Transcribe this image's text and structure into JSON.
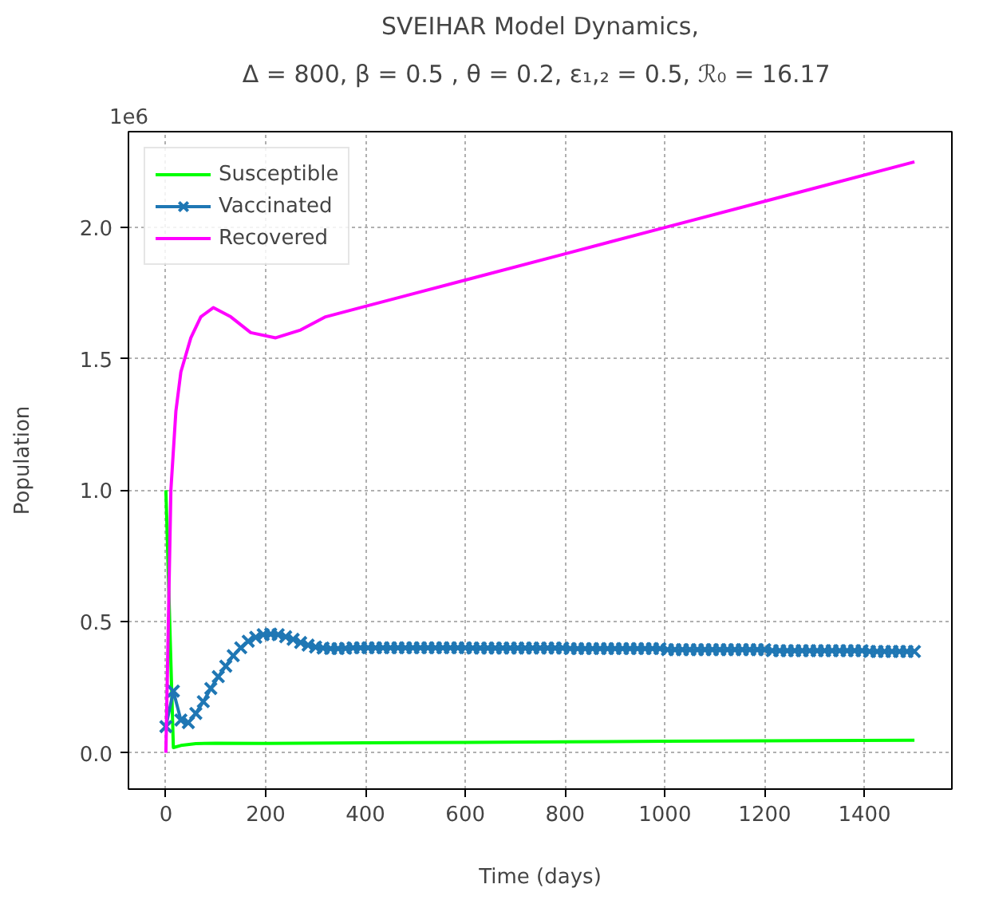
{
  "chart_data": {
    "type": "line",
    "title": "SVEIHAR Model Dynamics,",
    "subtitle": "Δ = 800, β = 0.5 , θ = 0.2, ε₁,₂ = 0.5,  ℛ₀ = 16.17",
    "xlabel": "Time (days)",
    "ylabel": "Population",
    "annotations": [
      "1e6"
    ],
    "xlim": [
      -75,
      1575
    ],
    "ylim": [
      -0.138,
      2.365
    ],
    "xticks": [
      0,
      200,
      400,
      600,
      800,
      1000,
      1200,
      1400
    ],
    "yticks": [
      {
        "value": 0,
        "label": "0.0"
      },
      0.5,
      {
        "value": 1,
        "label": "1.0"
      },
      1.5,
      {
        "value": 2,
        "label": "2.0"
      }
    ],
    "grid": true,
    "legend": "top left",
    "line_style": "solid",
    "series": [
      {
        "name": "Susceptible",
        "color": "#00ff00",
        "marker": "none",
        "x": [
          0,
          15,
          30,
          60,
          100,
          200,
          400,
          600,
          800,
          1000,
          1200,
          1500
        ],
        "values": [
          1.0,
          0.02,
          0.028,
          0.035,
          0.037,
          0.036,
          0.038,
          0.04,
          0.042,
          0.044,
          0.046,
          0.048
        ]
      },
      {
        "name": "Vaccinated",
        "color": "#1f77b4",
        "marker": "cross",
        "x": [
          0,
          15,
          30,
          45,
          60,
          75,
          90,
          105,
          120,
          135,
          150,
          165,
          180,
          195,
          210,
          225,
          240,
          255,
          270,
          285,
          300,
          315,
          330,
          345,
          360,
          375,
          390,
          405,
          420,
          435,
          450,
          465,
          480,
          495,
          510,
          525,
          540,
          555,
          570,
          585,
          600,
          615,
          630,
          645,
          660,
          675,
          690,
          705,
          720,
          735,
          750,
          765,
          780,
          795,
          810,
          825,
          840,
          855,
          870,
          885,
          900,
          915,
          930,
          945,
          960,
          975,
          990,
          1005,
          1020,
          1035,
          1050,
          1065,
          1080,
          1095,
          1110,
          1125,
          1140,
          1155,
          1170,
          1185,
          1200,
          1215,
          1230,
          1245,
          1260,
          1275,
          1290,
          1305,
          1320,
          1335,
          1350,
          1365,
          1380,
          1395,
          1410,
          1425,
          1440,
          1455,
          1470,
          1485,
          1500
        ],
        "values": [
          0.1,
          0.235,
          0.125,
          0.115,
          0.15,
          0.195,
          0.245,
          0.29,
          0.33,
          0.37,
          0.4,
          0.425,
          0.44,
          0.45,
          0.452,
          0.45,
          0.442,
          0.432,
          0.42,
          0.41,
          0.403,
          0.399,
          0.397,
          0.397,
          0.398,
          0.4,
          0.4,
          0.4,
          0.4,
          0.4,
          0.4,
          0.4,
          0.4,
          0.4,
          0.4,
          0.4,
          0.4,
          0.4,
          0.4,
          0.4,
          0.4,
          0.399,
          0.399,
          0.399,
          0.399,
          0.399,
          0.399,
          0.399,
          0.399,
          0.399,
          0.399,
          0.399,
          0.399,
          0.399,
          0.397,
          0.397,
          0.397,
          0.397,
          0.397,
          0.397,
          0.397,
          0.397,
          0.397,
          0.397,
          0.397,
          0.397,
          0.397,
          0.393,
          0.393,
          0.393,
          0.393,
          0.393,
          0.393,
          0.393,
          0.393,
          0.393,
          0.393,
          0.393,
          0.393,
          0.393,
          0.393,
          0.389,
          0.389,
          0.389,
          0.389,
          0.389,
          0.389,
          0.389,
          0.389,
          0.389,
          0.389,
          0.389,
          0.389,
          0.389,
          0.386,
          0.386,
          0.386,
          0.386,
          0.386,
          0.386,
          0.386
        ]
      },
      {
        "name": "Recovered",
        "color": "#ff00ff",
        "marker": "none",
        "x": [
          0,
          5,
          10,
          20,
          30,
          50,
          70,
          95,
          130,
          170,
          220,
          270,
          320,
          400,
          600,
          800,
          1000,
          1200,
          1500
        ],
        "values": [
          0,
          0.5,
          1.0,
          1.3,
          1.45,
          1.58,
          1.66,
          1.695,
          1.66,
          1.6,
          1.58,
          1.61,
          1.66,
          1.7,
          1.8,
          1.9,
          2.0,
          2.1,
          2.25
        ]
      }
    ]
  }
}
